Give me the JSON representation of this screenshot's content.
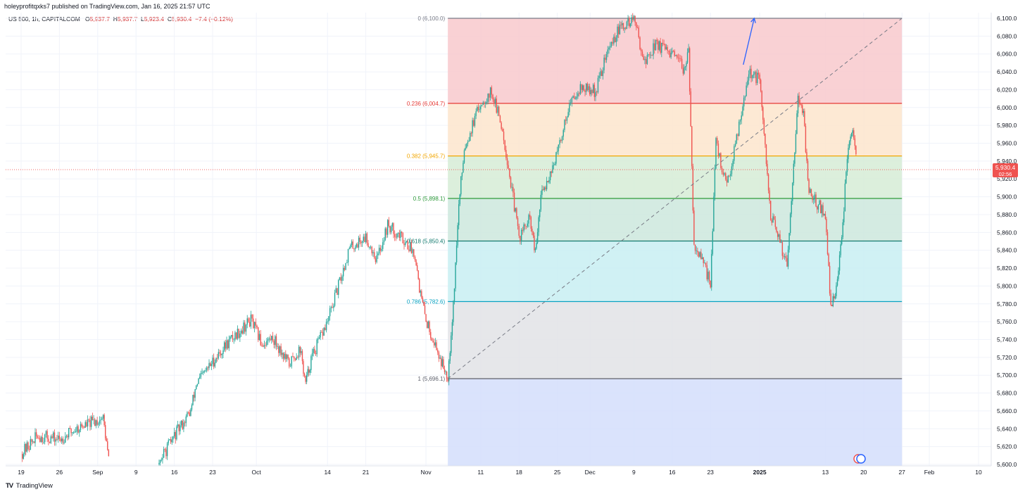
{
  "header": {
    "publisher": "holeyprofitqxks7 published on TradingView.com, Jan 16, 2025 21:57 UTC"
  },
  "legend": {
    "symbol": "US 500, 1h, CAPITALCOM",
    "o_label": "O",
    "o_value": "5,937.7",
    "h_label": "H",
    "h_value": "5,937.7",
    "l_label": "L",
    "l_value": "5,923.4",
    "c_label": "C",
    "c_value": "5,930.4",
    "change": "−7.4 (−0.12%)"
  },
  "price_tag": {
    "price": "5,930.4",
    "countdown": "02:56"
  },
  "footer": {
    "brand": "TradingView",
    "logo": "TV"
  },
  "colors": {
    "up": "#26a69a",
    "down": "#ef5350",
    "bg": "#ffffff",
    "grid": "#f0f3fa",
    "arrow": "#2962ff",
    "diagonal": "#787b86"
  },
  "chart_data": {
    "type": "candlestick",
    "ylim": [
      5600,
      6110
    ],
    "y_ticks": [
      5600,
      5620,
      5640,
      5660,
      5680,
      5700,
      5720,
      5740,
      5760,
      5780,
      5800,
      5820,
      5840,
      5860,
      5880,
      5900,
      5920,
      5940,
      5960,
      5980,
      6000,
      6020,
      6040,
      6060,
      6080,
      6100
    ],
    "y_tick_labels": [
      "5,600.0",
      "5,620.0",
      "5,640.0",
      "5,660.0",
      "5,680.0",
      "5,700.0",
      "5,720.0",
      "5,740.0",
      "5,760.0",
      "5,780.0",
      "5,800.0",
      "5,820.0",
      "5,840.0",
      "5,860.0",
      "5,880.0",
      "5,900.0",
      "5,920.0",
      "5,940.0",
      "5,960.0",
      "5,980.0",
      "6,000.0",
      "6,020.0",
      "6,040.0",
      "6,060.0",
      "6,080.0",
      "6,100.0"
    ],
    "x_range": [
      "2024-08-19",
      "2025-02-10"
    ],
    "x_ticks": [
      {
        "date": "2024-08-19",
        "label": "19"
      },
      {
        "date": "2024-08-26",
        "label": "26"
      },
      {
        "date": "2024-09-02",
        "label": "Sep"
      },
      {
        "date": "2024-09-09",
        "label": "9"
      },
      {
        "date": "2024-09-16",
        "label": "16"
      },
      {
        "date": "2024-09-23",
        "label": "23"
      },
      {
        "date": "2024-10-01",
        "label": "Oct"
      },
      {
        "date": "2024-10-14",
        "label": "14"
      },
      {
        "date": "2024-10-21",
        "label": "21"
      },
      {
        "date": "2024-11-01",
        "label": "Nov"
      },
      {
        "date": "2024-11-11",
        "label": "11"
      },
      {
        "date": "2024-11-18",
        "label": "18"
      },
      {
        "date": "2024-11-25",
        "label": "25"
      },
      {
        "date": "2024-12-01",
        "label": "Dec"
      },
      {
        "date": "2024-12-09",
        "label": "9"
      },
      {
        "date": "2024-12-16",
        "label": "16"
      },
      {
        "date": "2024-12-23",
        "label": "23"
      },
      {
        "date": "2025-01-01",
        "label": "2025",
        "bold": true
      },
      {
        "date": "2025-01-13",
        "label": "13"
      },
      {
        "date": "2025-01-20",
        "label": "20"
      },
      {
        "date": "2025-01-27",
        "label": "27"
      },
      {
        "date": "2025-02-01",
        "label": "Feb"
      },
      {
        "date": "2025-02-10",
        "label": "10"
      }
    ],
    "price_path": [
      [
        "2024-08-19",
        5612
      ],
      [
        "2024-08-22",
        5632
      ],
      [
        "2024-08-26",
        5628
      ],
      [
        "2024-08-29",
        5640
      ],
      [
        "2024-09-03",
        5652
      ],
      [
        "2024-09-04",
        5605
      ],
      [
        "2024-09-13",
        5600
      ],
      [
        "2024-09-16",
        5632
      ],
      [
        "2024-09-19",
        5660
      ],
      [
        "2024-09-20",
        5690
      ],
      [
        "2024-09-23",
        5715
      ],
      [
        "2024-09-26",
        5738
      ],
      [
        "2024-09-30",
        5762
      ],
      [
        "2024-10-02",
        5735
      ],
      [
        "2024-10-04",
        5742
      ],
      [
        "2024-10-07",
        5712
      ],
      [
        "2024-10-09",
        5730
      ],
      [
        "2024-10-10",
        5690
      ],
      [
        "2024-10-11",
        5718
      ],
      [
        "2024-10-14",
        5760
      ],
      [
        "2024-10-16",
        5800
      ],
      [
        "2024-10-18",
        5842
      ],
      [
        "2024-10-21",
        5855
      ],
      [
        "2024-10-23",
        5830
      ],
      [
        "2024-10-25",
        5868
      ],
      [
        "2024-10-28",
        5852
      ],
      [
        "2024-10-30",
        5836
      ],
      [
        "2024-10-31",
        5790
      ],
      [
        "2024-11-01",
        5762
      ],
      [
        "2024-11-04",
        5712
      ],
      [
        "2024-11-05",
        5700
      ],
      [
        "2024-11-06",
        5780
      ],
      [
        "2024-11-07",
        5890
      ],
      [
        "2024-11-08",
        5955
      ],
      [
        "2024-11-11",
        6005
      ],
      [
        "2024-11-13",
        6018
      ],
      [
        "2024-11-15",
        5975
      ],
      [
        "2024-11-18",
        5855
      ],
      [
        "2024-11-20",
        5875
      ],
      [
        "2024-11-21",
        5835
      ],
      [
        "2024-11-22",
        5900
      ],
      [
        "2024-11-25",
        5948
      ],
      [
        "2024-11-27",
        6000
      ],
      [
        "2024-11-29",
        6022
      ],
      [
        "2024-12-02",
        6018
      ],
      [
        "2024-12-04",
        6060
      ],
      [
        "2024-12-06",
        6085
      ],
      [
        "2024-12-09",
        6100
      ],
      [
        "2024-12-11",
        6050
      ],
      [
        "2024-12-13",
        6072
      ],
      [
        "2024-12-16",
        6058
      ],
      [
        "2024-12-18",
        6045
      ],
      [
        "2024-12-19",
        6060
      ],
      [
        "2024-12-20",
        5848
      ],
      [
        "2024-12-23",
        5805
      ],
      [
        "2024-12-24",
        5960
      ],
      [
        "2024-12-26",
        5910
      ],
      [
        "2024-12-28",
        5975
      ],
      [
        "2024-12-30",
        6040
      ],
      [
        "2025-01-01",
        6030
      ],
      [
        "2025-01-02",
        5952
      ],
      [
        "2025-01-03",
        5880
      ],
      [
        "2025-01-06",
        5825
      ],
      [
        "2025-01-07",
        5920
      ],
      [
        "2025-01-08",
        6010
      ],
      [
        "2025-01-09",
        5990
      ],
      [
        "2025-01-10",
        5905
      ],
      [
        "2025-01-13",
        5880
      ],
      [
        "2025-01-14",
        5775
      ],
      [
        "2025-01-15",
        5800
      ],
      [
        "2025-01-16",
        5850
      ],
      [
        "2025-01-17",
        5948
      ],
      [
        "2025-01-18",
        5970
      ],
      [
        "2025-01-19",
        5930
      ]
    ],
    "fib_retracement": {
      "start": {
        "date": "2024-11-05",
        "price": 5696.1
      },
      "end": {
        "date": "2025-01-27",
        "price": 6100.0
      },
      "levels": [
        {
          "ratio": "0",
          "price": 6100.0,
          "label": "0 (6,100.0)",
          "color": "#787b86",
          "fill": "#f8c9cc"
        },
        {
          "ratio": "0.236",
          "price": 6004.7,
          "label": "0.236 (6,004.7)",
          "color": "#e53935",
          "fill": "#fde5cc"
        },
        {
          "ratio": "0.382",
          "price": 5945.7,
          "label": "0.382 (5,945.7)",
          "color": "#f2a600",
          "fill": "#d6ecd6"
        },
        {
          "ratio": "0.5",
          "price": 5898.1,
          "label": "0.5 (5,898.1)",
          "color": "#2e9a3a",
          "fill": "#cde8dd"
        },
        {
          "ratio": "0.618",
          "price": 5850.4,
          "label": "0.618 (5,850.4)",
          "color": "#137a6e",
          "fill": "#c8eef2"
        },
        {
          "ratio": "0.786",
          "price": 5782.6,
          "label": "0.786 (5,782.6)",
          "color": "#0aa3c2",
          "fill": "#e2e3e6"
        },
        {
          "ratio": "1",
          "price": 5696.1,
          "label": "1 (5,696.1)",
          "color": "#5d606b",
          "fill": "#d3defc"
        }
      ]
    },
    "arrow": {
      "from": {
        "date": "2024-12-29",
        "price": 6048
      },
      "to": {
        "date": "2024-12-31",
        "price": 6100
      }
    },
    "last_price": 5930.4
  }
}
